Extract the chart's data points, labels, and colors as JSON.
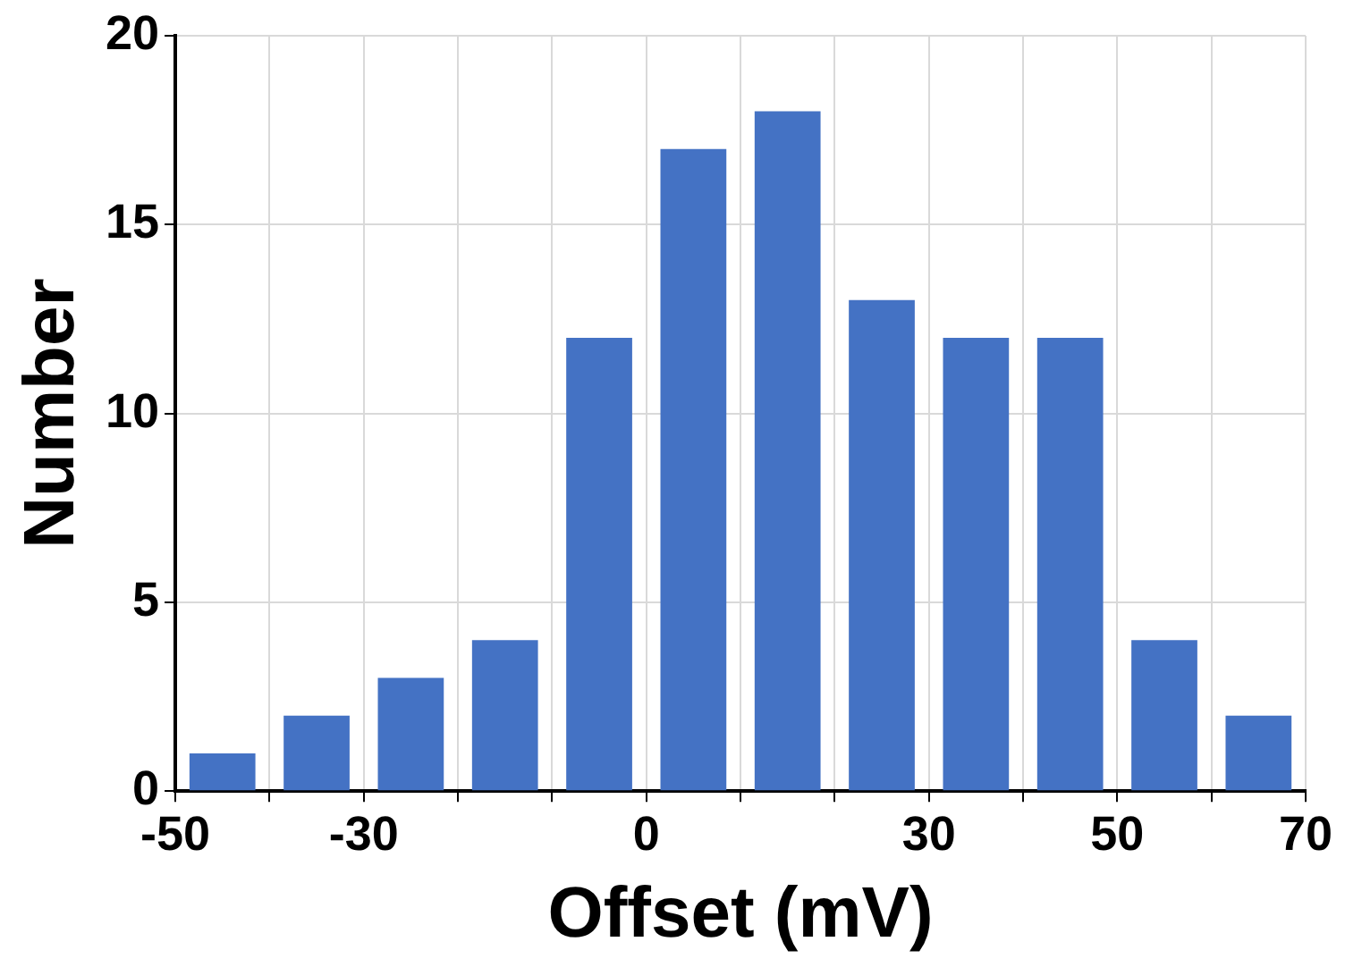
{
  "chart_data": {
    "type": "histogram",
    "xlabel": "Offset (mV)",
    "ylabel": "Number",
    "bins": [
      -50,
      -40,
      -30,
      -20,
      -10,
      0,
      10,
      20,
      30,
      40,
      50,
      60,
      70
    ],
    "values": [
      1,
      2,
      3,
      4,
      12,
      17,
      18,
      13,
      12,
      12,
      4,
      2
    ],
    "color": "#4472c4",
    "xlim": [
      -50,
      70
    ],
    "xticks": [
      -50,
      {
        "value": -40,
        "label": null
      },
      -30,
      {
        "value": -20,
        "label": null
      },
      {
        "value": -10,
        "label": null
      },
      0,
      {
        "value": 10,
        "label": null
      },
      {
        "value": 20,
        "label": null
      },
      30,
      {
        "value": 40,
        "label": null
      },
      50,
      {
        "value": 60,
        "label": null
      },
      70
    ],
    "ylim": [
      0,
      20
    ],
    "yticks": [
      0,
      5,
      10,
      15,
      20
    ],
    "grid": true,
    "legend": false
  }
}
